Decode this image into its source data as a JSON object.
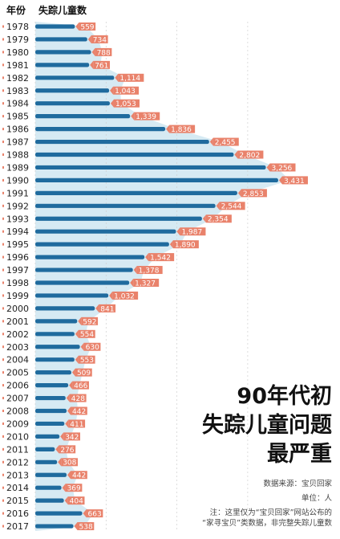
{
  "header": {
    "year_label": "年份",
    "count_label": "失踪儿童数"
  },
  "title": {
    "line1": "90年代初",
    "line2": "失踪儿童问题",
    "line3": "最严重"
  },
  "source": "数据来源：宝贝回家",
  "unit": "单位：人",
  "note": {
    "line1": "注：这里仅为“宝贝回家”网站公布的",
    "line2": "“家寻宝贝”类数据，非完整失踪儿童数"
  },
  "colors": {
    "bar": "#1f6b9e",
    "label_bg": "#e9826b",
    "area": "#d6eaf3",
    "grid": "#cfcfcf",
    "year_tick": "#e9826b"
  },
  "chart_data": {
    "type": "bar",
    "orientation": "horizontal",
    "categories": [
      "1978",
      "1979",
      "1980",
      "1981",
      "1982",
      "1983",
      "1984",
      "1985",
      "1986",
      "1987",
      "1988",
      "1989",
      "1990",
      "1991",
      "1992",
      "1993",
      "1994",
      "1995",
      "1996",
      "1997",
      "1998",
      "1999",
      "2000",
      "2001",
      "2002",
      "2003",
      "2004",
      "2005",
      "2006",
      "2007",
      "2008",
      "2009",
      "2010",
      "2011",
      "2012",
      "2013",
      "2014",
      "2015",
      "2016",
      "2017"
    ],
    "values": [
      559,
      734,
      788,
      761,
      1114,
      1043,
      1053,
      1339,
      1836,
      2455,
      2802,
      3256,
      3431,
      2853,
      2544,
      2354,
      1987,
      1890,
      1542,
      1378,
      1327,
      1032,
      841,
      592,
      554,
      630,
      553,
      509,
      466,
      428,
      442,
      411,
      342,
      276,
      308,
      442,
      369,
      404,
      663,
      538
    ],
    "labels": [
      "559",
      "734",
      "788",
      "761",
      "1,114",
      "1,043",
      "1,053",
      "1,339",
      "1,836",
      "2,455",
      "2,802",
      "3,256",
      "3,431",
      "2,853",
      "2,544",
      "2,354",
      "1,987",
      "1,890",
      "1,542",
      "1,378",
      "1,327",
      "1,032",
      "841",
      "592",
      "554",
      "630",
      "553",
      "509",
      "466",
      "428",
      "442",
      "411",
      "342",
      "276",
      "308",
      "442",
      "369",
      "404",
      "663",
      "538"
    ],
    "xlim": [
      0,
      3500
    ],
    "grid": true,
    "area_shading": true
  }
}
